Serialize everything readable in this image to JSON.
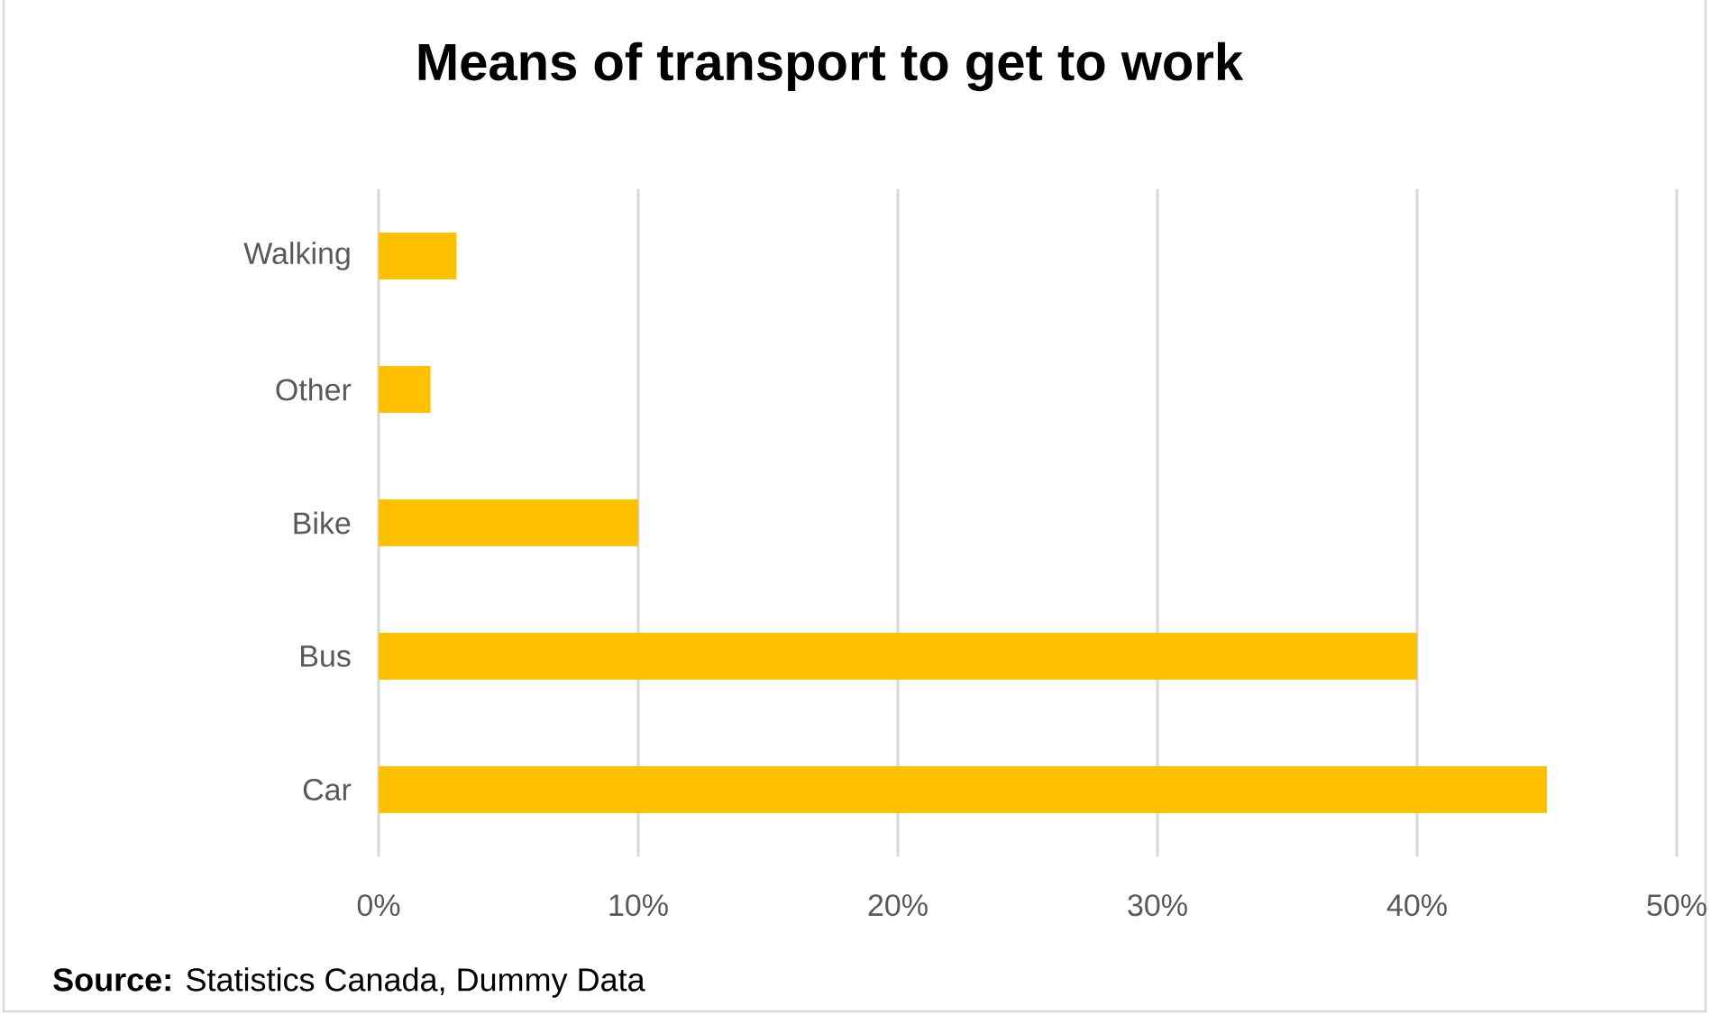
{
  "chart_data": {
    "type": "bar",
    "orientation": "horizontal",
    "title": "Means of transport to get to work",
    "categories": [
      "Walking",
      "Other",
      "Bike",
      "Bus",
      "Car"
    ],
    "values": [
      3,
      2,
      10,
      40,
      45
    ],
    "color": "#ffc000",
    "xlim": [
      0,
      50
    ],
    "xticks": [
      {
        "value": 0,
        "label": "0%"
      },
      {
        "value": 10,
        "label": "10%"
      },
      {
        "value": 20,
        "label": "20%"
      },
      {
        "value": 30,
        "label": "30%"
      },
      {
        "value": 40,
        "label": "40%"
      },
      {
        "value": 50,
        "label": "50%"
      }
    ],
    "grid": "x",
    "annotations": [
      "**Source:**  Statistics Canada, Dummy Data"
    ]
  }
}
